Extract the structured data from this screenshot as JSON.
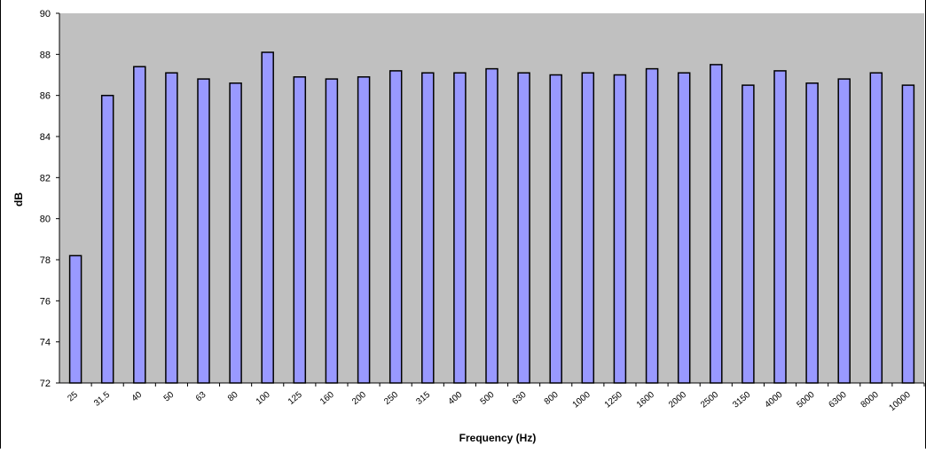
{
  "chart_data": {
    "type": "bar",
    "title": "",
    "xlabel": "Frequency (Hz)",
    "ylabel": "dB",
    "ylim": [
      72,
      90
    ],
    "yticks": [
      72,
      74,
      76,
      78,
      80,
      82,
      84,
      86,
      88,
      90
    ],
    "grid": false,
    "legend": "none",
    "categories": [
      "25",
      "31.5",
      "40",
      "50",
      "63",
      "80",
      "100",
      "125",
      "160",
      "200",
      "250",
      "315",
      "400",
      "500",
      "630",
      "800",
      "1000",
      "1250",
      "1600",
      "2000",
      "2500",
      "3150",
      "4000",
      "5000",
      "6300",
      "8000",
      "10000"
    ],
    "values": [
      78.2,
      86.0,
      87.4,
      87.1,
      86.8,
      86.6,
      88.1,
      86.9,
      86.8,
      86.9,
      87.2,
      87.1,
      87.1,
      87.3,
      87.1,
      87.0,
      87.1,
      87.0,
      87.3,
      87.1,
      87.5,
      86.5,
      87.2,
      86.6,
      86.8,
      87.1,
      86.5
    ],
    "colors": {
      "plot_background": "#c0c0c0",
      "bar_fill": "#9999ff",
      "bar_stroke": "#000000"
    }
  }
}
